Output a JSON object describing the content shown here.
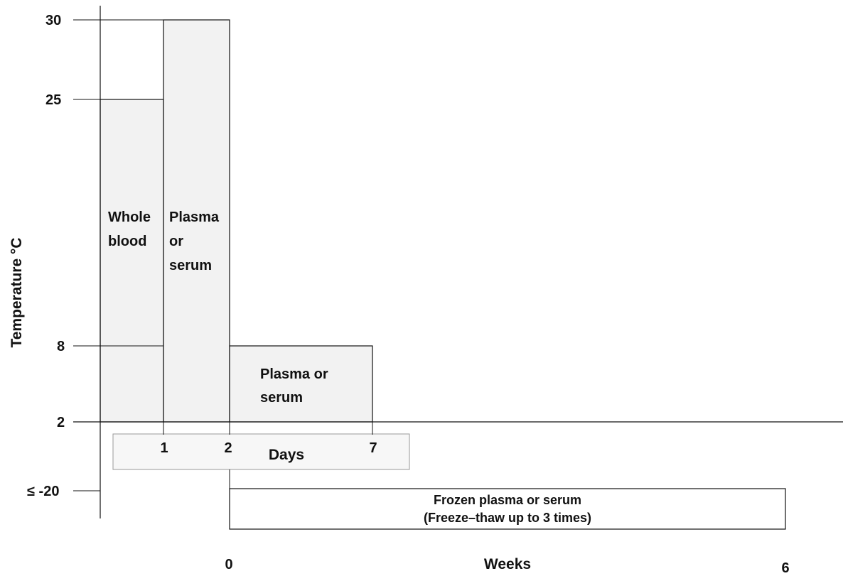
{
  "y_axis": {
    "title": "Temperature °C",
    "ticks": [
      "30",
      "25",
      "8",
      "2",
      "≤ -20"
    ]
  },
  "days_axis": {
    "title": "Days",
    "ticks": [
      "1",
      "2",
      "7"
    ]
  },
  "weeks_axis": {
    "title": "Weeks",
    "ticks": [
      "0",
      "6"
    ]
  },
  "regions": {
    "whole_blood": {
      "lines": [
        "Whole",
        "blood"
      ],
      "days": [
        0,
        1
      ],
      "temperature_c": [
        2,
        25
      ]
    },
    "plasma_room": {
      "lines": [
        "Plasma",
        "or",
        "serum"
      ],
      "days": [
        1,
        2
      ],
      "temperature_c": [
        2,
        30
      ]
    },
    "plasma_fridge": {
      "lines": [
        "Plasma or",
        "serum"
      ],
      "days": [
        2,
        7
      ],
      "temperature_c": [
        2,
        8
      ]
    },
    "frozen": {
      "lines": [
        "Frozen plasma or serum",
        "(Freeze–thaw up to 3 times)"
      ],
      "weeks": [
        0,
        6
      ],
      "temperature_c": "≤ -20"
    }
  },
  "colors": {
    "fill": "#f2f2f2",
    "stroke": "#111111"
  }
}
